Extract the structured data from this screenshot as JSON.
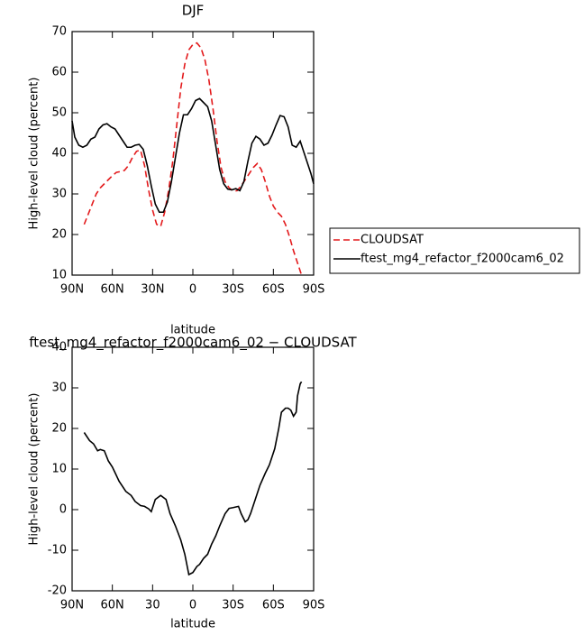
{
  "chart_data": [
    {
      "type": "line",
      "title": "DJF",
      "xlabel": "latitude",
      "ylabel": "High-level cloud (percent)",
      "xlim": [
        90,
        -90
      ],
      "xticks": [
        {
          "value": 90,
          "label": "90N"
        },
        {
          "value": 60,
          "label": "60N"
        },
        {
          "value": 30,
          "label": "30N"
        },
        0,
        {
          "value": -30,
          "label": "30S"
        },
        {
          "value": -60,
          "label": "60S"
        },
        {
          "value": -90,
          "label": "90S"
        }
      ],
      "ylim": [
        10,
        70
      ],
      "yticks": [
        10,
        20,
        30,
        40,
        50,
        60,
        70
      ],
      "legend": "right",
      "series": [
        {
          "name": "CLOUDSAT",
          "color": "#e31a1c",
          "dash": "dashed",
          "x": [
            81,
            78,
            75,
            72,
            69,
            66,
            63,
            60,
            57,
            54,
            51,
            48,
            45,
            42,
            39,
            36,
            33,
            30,
            27,
            24,
            21,
            18,
            15,
            12,
            9,
            6,
            3,
            0,
            -3,
            -6,
            -9,
            -12,
            -15,
            -18,
            -21,
            -24,
            -27,
            -30,
            -33,
            -36,
            -39,
            -42,
            -45,
            -48,
            -51,
            -54,
            -57,
            -60,
            -63,
            -66,
            -69,
            -72,
            -75,
            -78,
            -81
          ],
          "values": [
            22.5,
            25,
            27.5,
            30,
            31.5,
            32.5,
            33.5,
            34.5,
            35.3,
            35.5,
            35.8,
            37,
            39,
            40.5,
            40.8,
            37,
            31,
            26,
            22.5,
            22,
            25.5,
            31,
            38,
            47,
            56,
            62,
            65.5,
            66.8,
            67.2,
            66,
            63,
            58,
            51,
            43,
            36.5,
            33,
            31.5,
            30.7,
            30.8,
            32,
            33.5,
            35,
            36.5,
            37.5,
            36,
            33,
            29.5,
            27,
            25.5,
            24.5,
            22.5,
            19.5,
            16,
            13,
            10
          ]
        },
        {
          "name": "ftest_mg4_refactor_f2000cam6_02",
          "color": "#000000",
          "dash": "solid",
          "x": [
            90,
            88,
            85,
            82,
            79,
            76,
            73,
            70,
            67,
            64,
            61,
            58,
            55,
            52,
            49,
            46,
            43,
            40,
            37,
            34,
            31,
            28,
            25,
            22,
            19,
            16,
            13,
            10,
            7,
            4,
            1,
            -2,
            -5,
            -8,
            -11,
            -14,
            -17,
            -20,
            -23,
            -26,
            -29,
            -32,
            -35,
            -38,
            -41,
            -44,
            -47,
            -50,
            -53,
            -56,
            -59,
            -62,
            -65,
            -68,
            -71,
            -74,
            -77,
            -80,
            -83,
            -86,
            -88,
            -90
          ],
          "values": [
            48,
            44,
            42,
            41.5,
            42,
            43.5,
            44,
            46,
            47,
            47.3,
            46.5,
            46,
            44.5,
            43,
            41.5,
            41.5,
            42,
            42.2,
            41,
            37,
            32,
            27.5,
            25.5,
            25.5,
            28,
            33,
            39,
            45,
            49.5,
            49.5,
            51,
            53,
            53.5,
            52.5,
            51.5,
            48,
            42,
            36,
            32.5,
            31.2,
            31,
            31.3,
            30.8,
            33,
            38,
            42.5,
            44.2,
            43.5,
            42,
            42.5,
            44.5,
            47,
            49.3,
            49,
            46.5,
            42,
            41.5,
            43,
            40,
            37,
            35,
            32.5
          ]
        }
      ]
    },
    {
      "type": "line",
      "title": "ftest_mg4_refactor_f2000cam6_02 − CLOUDSAT",
      "xlabel": "latitude",
      "ylabel": "High-level cloud (percent)",
      "xlim": [
        90,
        -90
      ],
      "xticks": [
        {
          "value": 90,
          "label": "90N"
        },
        {
          "value": 60,
          "label": "60N"
        },
        {
          "value": 30,
          "label": "30"
        },
        0,
        {
          "value": -30,
          "label": "30S"
        },
        {
          "value": -60,
          "label": "60S"
        },
        {
          "value": -90,
          "label": "90S"
        }
      ],
      "ylim": [
        -20,
        40
      ],
      "yticks": [
        -20,
        -10,
        0,
        10,
        20,
        30,
        40
      ],
      "series": [
        {
          "color": "#000000",
          "dash": "solid",
          "x": [
            81,
            77,
            74,
            71,
            69,
            66,
            63,
            60,
            55,
            50,
            46,
            43,
            39,
            36,
            33,
            31,
            28,
            24,
            20,
            17,
            13,
            9,
            6,
            3,
            0,
            -3,
            -5,
            -8,
            -11,
            -14,
            -17,
            -20,
            -24,
            -27,
            -30,
            -34,
            -36,
            -39,
            -41,
            -43,
            -46,
            -50,
            -54,
            -57,
            -61,
            -64,
            -66,
            -69,
            -71,
            -73,
            -75,
            -77,
            -78,
            -80,
            -81
          ],
          "values": [
            19,
            17,
            16.2,
            14.5,
            14.8,
            14.5,
            12,
            10.5,
            7,
            4.5,
            3.5,
            2,
            1,
            0.8,
            0.2,
            -0.5,
            2.5,
            3.5,
            2.5,
            -1,
            -4,
            -7.5,
            -11,
            -16,
            -15.5,
            -14,
            -13.5,
            -12,
            -11,
            -8.5,
            -6.5,
            -4,
            -1,
            0.3,
            0.5,
            0.8,
            -1,
            -3,
            -2.5,
            -1,
            2,
            6,
            9,
            11,
            15,
            20,
            24,
            25,
            25,
            24.5,
            23,
            24,
            28,
            31,
            31.5
          ]
        }
      ]
    }
  ]
}
